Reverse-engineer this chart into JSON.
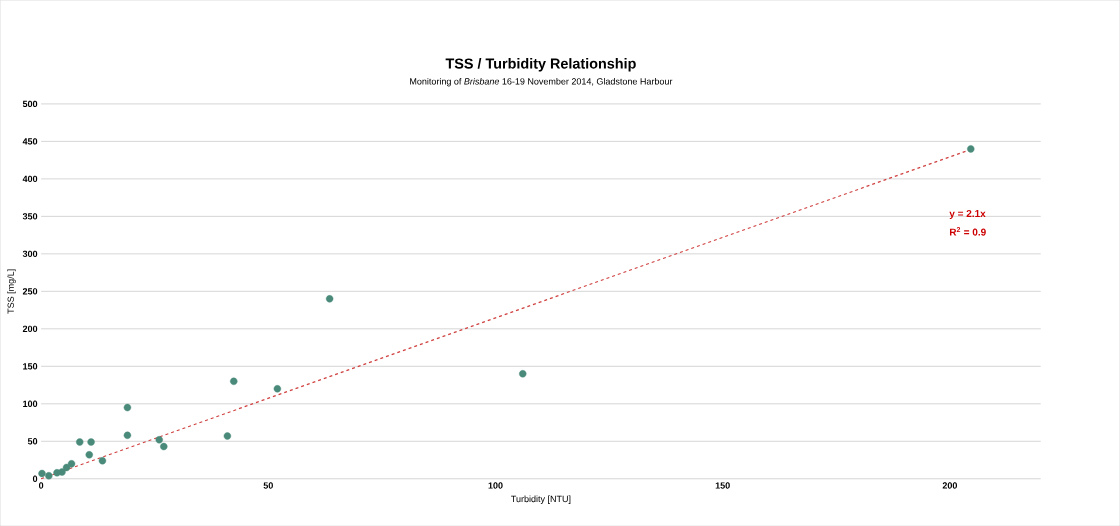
{
  "chart_data": {
    "type": "scatter",
    "title": "TSS / Turbidity Relationship",
    "subtitle": "Monitoring of *Brisbane* 16-19 November 2014, Gladstone Harbour",
    "xlabel": "Turbidity [NTU]",
    "ylabel": "TSS [mg/L]",
    "xlim": [
      0,
      220
    ],
    "ylim": [
      0,
      500
    ],
    "xticks": [
      0,
      50,
      100,
      150,
      200
    ],
    "yticks": [
      0,
      50,
      100,
      150,
      200,
      250,
      300,
      350,
      400,
      450,
      500
    ],
    "grid": "y",
    "marker": "circle",
    "annotations": [
      "y = 2.1x",
      "R$^{2}$ = 0.9"
    ],
    "series": [
      {
        "color": "#4a8a7a",
        "x": [
          0.2,
          1.7,
          3.5,
          4.6,
          5.6,
          6.7,
          8.5,
          11,
          10.6,
          13.5,
          19,
          19,
          26,
          27,
          41,
          42.4,
          52,
          63.5,
          106,
          204.6
        ],
        "values": [
          7,
          4,
          8,
          9,
          15,
          20,
          49,
          49,
          32,
          24,
          95,
          58,
          52,
          43,
          57,
          130,
          120,
          240,
          140,
          440
        ]
      },
      {
        "type": "line",
        "color": "#d04040",
        "line_style": "dashed",
        "marker": "none",
        "x": [
          0,
          205
        ],
        "values": [
          0,
          440
        ]
      }
    ]
  }
}
